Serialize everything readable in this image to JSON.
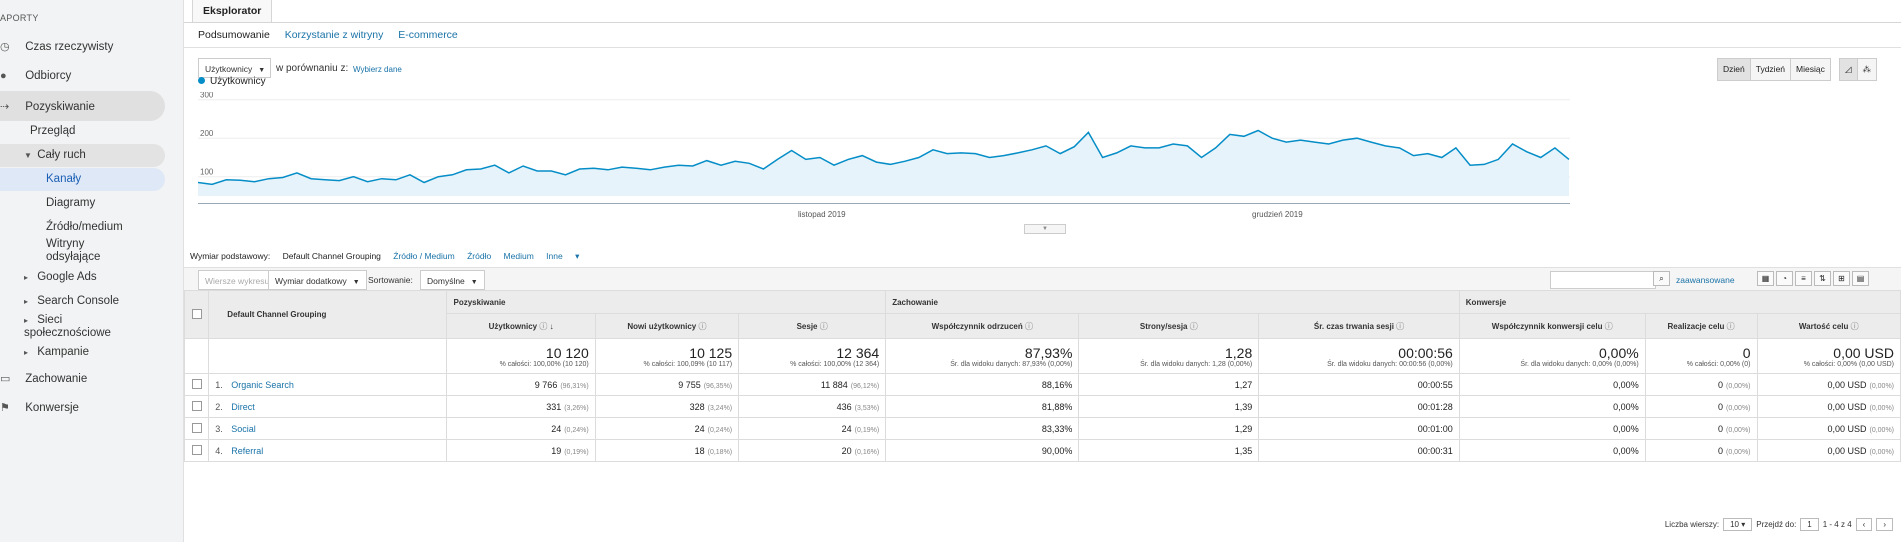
{
  "sidebar": {
    "section": "APORTY",
    "items": [
      {
        "label": "Czas rzeczywisty",
        "icon": "clock-icon"
      },
      {
        "label": "Odbiorcy",
        "icon": "person-icon"
      },
      {
        "label": "Pozyskiwanie",
        "icon": "acquisition-icon"
      },
      {
        "label": "Przegląd"
      },
      {
        "label": "Cały ruch"
      },
      {
        "label": "Kanały"
      },
      {
        "label": "Diagramy"
      },
      {
        "label": "Źródło/medium"
      },
      {
        "label": "Witryny odsyłające"
      },
      {
        "label": "Google Ads"
      },
      {
        "label": "Search Console"
      },
      {
        "label": "Sieci społecznościowe"
      },
      {
        "label": "Kampanie"
      },
      {
        "label": "Zachowanie",
        "icon": "behavior-icon"
      },
      {
        "label": "Konwersje",
        "icon": "flag-icon"
      }
    ]
  },
  "explorer_tab": "Eksplorator",
  "subtabs": [
    "Podsumowanie",
    "Korzystanie z witryny",
    "E-commerce"
  ],
  "metric_select": "Użytkownicy",
  "compare_label": "w porównaniu z:",
  "compare_link": "Wybierz dane",
  "period_buttons": [
    "Dzień",
    "Tydzień",
    "Miesiąc"
  ],
  "legend": "Użytkownicy",
  "chart_data": {
    "type": "line",
    "series": [
      {
        "name": "Użytkownicy",
        "values": [
          85,
          80,
          92,
          91,
          87,
          95,
          98,
          110,
          95,
          92,
          90,
          100,
          87,
          95,
          92,
          105,
          85,
          100,
          105,
          118,
          120,
          130,
          110,
          128,
          115,
          115,
          105,
          120,
          122,
          118,
          125,
          122,
          118,
          125,
          130,
          128,
          142,
          130,
          140,
          135,
          120,
          145,
          168,
          145,
          150,
          130,
          145,
          155,
          138,
          132,
          140,
          150,
          170,
          160,
          162,
          160,
          150,
          155,
          162,
          170,
          180,
          160,
          178,
          215,
          150,
          162,
          180,
          175,
          175,
          185,
          180,
          150,
          175,
          210,
          205,
          220,
          200,
          190,
          195,
          190,
          185,
          195,
          200,
          190,
          180,
          175,
          155,
          160,
          150,
          175,
          130,
          132,
          145,
          185,
          165,
          150,
          175,
          145
        ],
        "color": "#058dc7"
      }
    ],
    "y_ticks": [
      100,
      200,
      300
    ],
    "ylim": [
      50,
      320
    ],
    "x_labels": [
      "listopad 2019",
      "grudzień 2019"
    ]
  },
  "dimension": {
    "label": "Wymiar podstawowy:",
    "active": "Default Channel Grouping",
    "links": [
      "Źródło / Medium",
      "Źródło",
      "Medium",
      "Inne"
    ]
  },
  "toolbar": {
    "plot_rows": "Wiersze wykresu",
    "secondary": "Wymiar dodatkowy",
    "sort_label": "Sortowanie:",
    "sort_value": "Domyślne",
    "advanced": "zaawansowane"
  },
  "table": {
    "groups": [
      "Pozyskiwanie",
      "Zachowanie",
      "Konwersje"
    ],
    "dim_header": "Default Channel Grouping",
    "columns": [
      "Użytkownicy",
      "Nowi użytkownicy",
      "Sesje",
      "Współczynnik odrzuceń",
      "Strony/sesja",
      "Śr. czas trwania sesji",
      "Współczynnik konwersji celu",
      "Realizacje celu",
      "Wartość celu"
    ],
    "totals": [
      {
        "big": "10 120",
        "sub": "% całości: 100,00% (10 120)"
      },
      {
        "big": "10 125",
        "sub": "% całości: 100,09% (10 117)"
      },
      {
        "big": "12 364",
        "sub": "% całości: 100,00% (12 364)"
      },
      {
        "big": "87,93%",
        "sub": "Śr. dla widoku danych: 87,93% (0,00%)"
      },
      {
        "big": "1,28",
        "sub": "Śr. dla widoku danych: 1,28 (0,00%)"
      },
      {
        "big": "00:00:56",
        "sub": "Śr. dla widoku danych: 00:00:56 (0,00%)"
      },
      {
        "big": "0,00%",
        "sub": "Śr. dla widoku danych: 0,00% (0,00%)"
      },
      {
        "big": "0",
        "sub": "% całości: 0,00% (0)"
      },
      {
        "big": "0,00 USD",
        "sub": "% całości: 0,00% (0,00 USD)"
      }
    ],
    "rows": [
      {
        "num": "1.",
        "name": "Organic Search",
        "users": "9 766",
        "users_p": "(96,31%)",
        "new": "9 755",
        "new_p": "(96,35%)",
        "sess": "11 884",
        "sess_p": "(96,12%)",
        "bounce": "88,16%",
        "pages": "1,27",
        "dur": "00:00:55",
        "conv": "0,00%",
        "goal": "0",
        "goal_p": "(0,00%)",
        "val": "0,00 USD",
        "val_p": "(0,00%)"
      },
      {
        "num": "2.",
        "name": "Direct",
        "users": "331",
        "users_p": "(3,26%)",
        "new": "328",
        "new_p": "(3,24%)",
        "sess": "436",
        "sess_p": "(3,53%)",
        "bounce": "81,88%",
        "pages": "1,39",
        "dur": "00:01:28",
        "conv": "0,00%",
        "goal": "0",
        "goal_p": "(0,00%)",
        "val": "0,00 USD",
        "val_p": "(0,00%)"
      },
      {
        "num": "3.",
        "name": "Social",
        "users": "24",
        "users_p": "(0,24%)",
        "new": "24",
        "new_p": "(0,24%)",
        "sess": "24",
        "sess_p": "(0,19%)",
        "bounce": "83,33%",
        "pages": "1,29",
        "dur": "00:01:00",
        "conv": "0,00%",
        "goal": "0",
        "goal_p": "(0,00%)",
        "val": "0,00 USD",
        "val_p": "(0,00%)"
      },
      {
        "num": "4.",
        "name": "Referral",
        "users": "19",
        "users_p": "(0,19%)",
        "new": "18",
        "new_p": "(0,18%)",
        "sess": "20",
        "sess_p": "(0,16%)",
        "bounce": "90,00%",
        "pages": "1,35",
        "dur": "00:00:31",
        "conv": "0,00%",
        "goal": "0",
        "goal_p": "(0,00%)",
        "val": "0,00 USD",
        "val_p": "(0,00%)"
      }
    ]
  },
  "pager": {
    "rows_label": "Liczba wierszy:",
    "rows_value": "10",
    "goto_label": "Przejdź do:",
    "goto_value": "1",
    "range": "1 - 4 z 4"
  }
}
